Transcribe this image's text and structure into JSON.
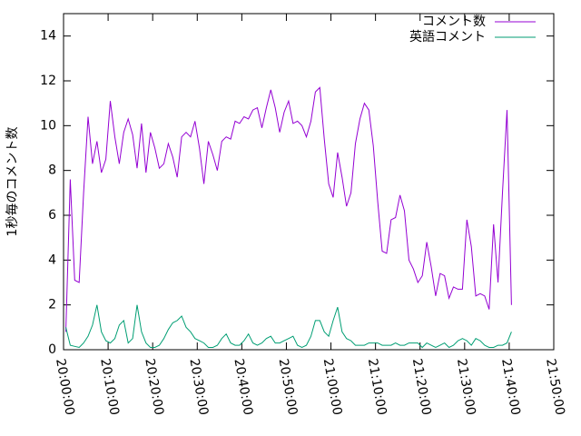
{
  "chart_data": {
    "type": "line",
    "y_label": "1秒毎のコメント数",
    "x": [
      "20:00:30",
      "20:01:30",
      "20:02:30",
      "20:03:30",
      "20:04:30",
      "20:05:30",
      "20:06:30",
      "20:07:30",
      "20:08:30",
      "20:09:30",
      "20:10:30",
      "20:11:30",
      "20:12:30",
      "20:13:30",
      "20:14:30",
      "20:15:30",
      "20:16:30",
      "20:17:30",
      "20:18:30",
      "20:19:30",
      "20:20:30",
      "20:21:30",
      "20:22:30",
      "20:23:30",
      "20:24:30",
      "20:25:30",
      "20:26:30",
      "20:27:30",
      "20:28:30",
      "20:29:30",
      "20:30:30",
      "20:31:30",
      "20:32:30",
      "20:33:30",
      "20:34:30",
      "20:35:30",
      "20:36:30",
      "20:37:30",
      "20:38:30",
      "20:39:30",
      "20:40:30",
      "20:41:30",
      "20:42:30",
      "20:43:30",
      "20:44:30",
      "20:45:30",
      "20:46:30",
      "20:47:30",
      "20:48:30",
      "20:49:30",
      "20:50:30",
      "20:51:30",
      "20:52:30",
      "20:53:30",
      "20:54:30",
      "20:55:30",
      "20:56:30",
      "20:57:30",
      "20:58:30",
      "20:59:30",
      "21:00:30",
      "21:01:30",
      "21:02:30",
      "21:03:30",
      "21:04:30",
      "21:05:30",
      "21:06:30",
      "21:07:30",
      "21:08:30",
      "21:09:30",
      "21:10:30",
      "21:11:30",
      "21:12:30",
      "21:13:30",
      "21:14:30",
      "21:15:30",
      "21:16:30",
      "21:17:30",
      "21:18:30",
      "21:19:30",
      "21:20:30",
      "21:21:30",
      "21:22:30",
      "21:23:30",
      "21:24:30",
      "21:25:30",
      "21:26:30",
      "21:27:30",
      "21:28:30",
      "21:29:30",
      "21:30:30",
      "21:31:30",
      "21:32:30",
      "21:33:30",
      "21:34:30",
      "21:35:30",
      "21:36:30",
      "21:37:30",
      "21:38:30",
      "21:39:30",
      "21:40:30"
    ],
    "series": [
      {
        "name": "コメント数",
        "color": "#9400d3",
        "values": [
          0.8,
          7.6,
          3.1,
          3.0,
          7.0,
          10.4,
          8.3,
          9.3,
          7.9,
          8.5,
          11.1,
          9.5,
          8.3,
          9.7,
          10.3,
          9.6,
          8.1,
          10.1,
          7.9,
          9.7,
          9.0,
          8.1,
          8.3,
          9.2,
          8.6,
          7.7,
          9.5,
          9.7,
          9.5,
          10.2,
          9.0,
          7.4,
          9.3,
          8.7,
          8.0,
          9.3,
          9.5,
          9.4,
          10.2,
          10.1,
          10.4,
          10.3,
          10.7,
          10.8,
          9.9,
          10.8,
          11.6,
          10.8,
          9.7,
          10.6,
          11.1,
          10.1,
          10.2,
          10.0,
          9.5,
          10.2,
          11.5,
          11.7,
          9.4,
          7.4,
          6.8,
          8.8,
          7.7,
          6.4,
          7.0,
          9.2,
          10.3,
          11.0,
          10.7,
          9.1,
          6.6,
          4.4,
          4.3,
          5.8,
          5.9,
          6.9,
          6.2,
          4.0,
          3.6,
          3.0,
          3.3,
          4.8,
          3.7,
          2.4,
          3.4,
          3.3,
          2.3,
          2.8,
          2.7,
          2.7,
          5.8,
          4.6,
          2.4,
          2.5,
          2.4,
          1.8,
          5.6,
          3.0,
          7.0,
          10.7,
          2.0
        ]
      },
      {
        "name": "英語コメント",
        "color": "#009e73",
        "values": [
          1.0,
          0.2,
          0.15,
          0.1,
          0.3,
          0.6,
          1.1,
          2.0,
          0.8,
          0.4,
          0.3,
          0.5,
          1.1,
          1.3,
          0.3,
          0.5,
          2.0,
          0.8,
          0.3,
          0.1,
          0.1,
          0.2,
          0.5,
          0.9,
          1.2,
          1.3,
          1.5,
          1.0,
          0.8,
          0.5,
          0.4,
          0.3,
          0.1,
          0.1,
          0.2,
          0.5,
          0.7,
          0.3,
          0.2,
          0.2,
          0.4,
          0.7,
          0.3,
          0.2,
          0.3,
          0.5,
          0.6,
          0.3,
          0.3,
          0.4,
          0.5,
          0.6,
          0.2,
          0.1,
          0.2,
          0.6,
          1.3,
          1.3,
          0.8,
          0.6,
          1.3,
          1.9,
          0.8,
          0.5,
          0.4,
          0.2,
          0.2,
          0.2,
          0.3,
          0.3,
          0.3,
          0.2,
          0.2,
          0.2,
          0.3,
          0.2,
          0.2,
          0.3,
          0.3,
          0.3,
          0.1,
          0.3,
          0.2,
          0.1,
          0.2,
          0.3,
          0.1,
          0.2,
          0.4,
          0.5,
          0.4,
          0.2,
          0.5,
          0.4,
          0.2,
          0.1,
          0.1,
          0.2,
          0.2,
          0.3,
          0.8
        ]
      }
    ],
    "xlim": [
      "20:00:00",
      "21:50:00"
    ],
    "xticks": [
      "20:00:00",
      "20:10:00",
      "20:20:00",
      "20:30:00",
      "20:40:00",
      "20:50:00",
      "21:00:00",
      "21:10:00",
      "21:20:00",
      "21:30:00",
      "21:40:00",
      "21:50:00"
    ],
    "ylim": [
      0,
      15
    ],
    "yticks": [
      0,
      2,
      4,
      6,
      8,
      10,
      12,
      14
    ],
    "legend": "top-right",
    "grid": false
  }
}
